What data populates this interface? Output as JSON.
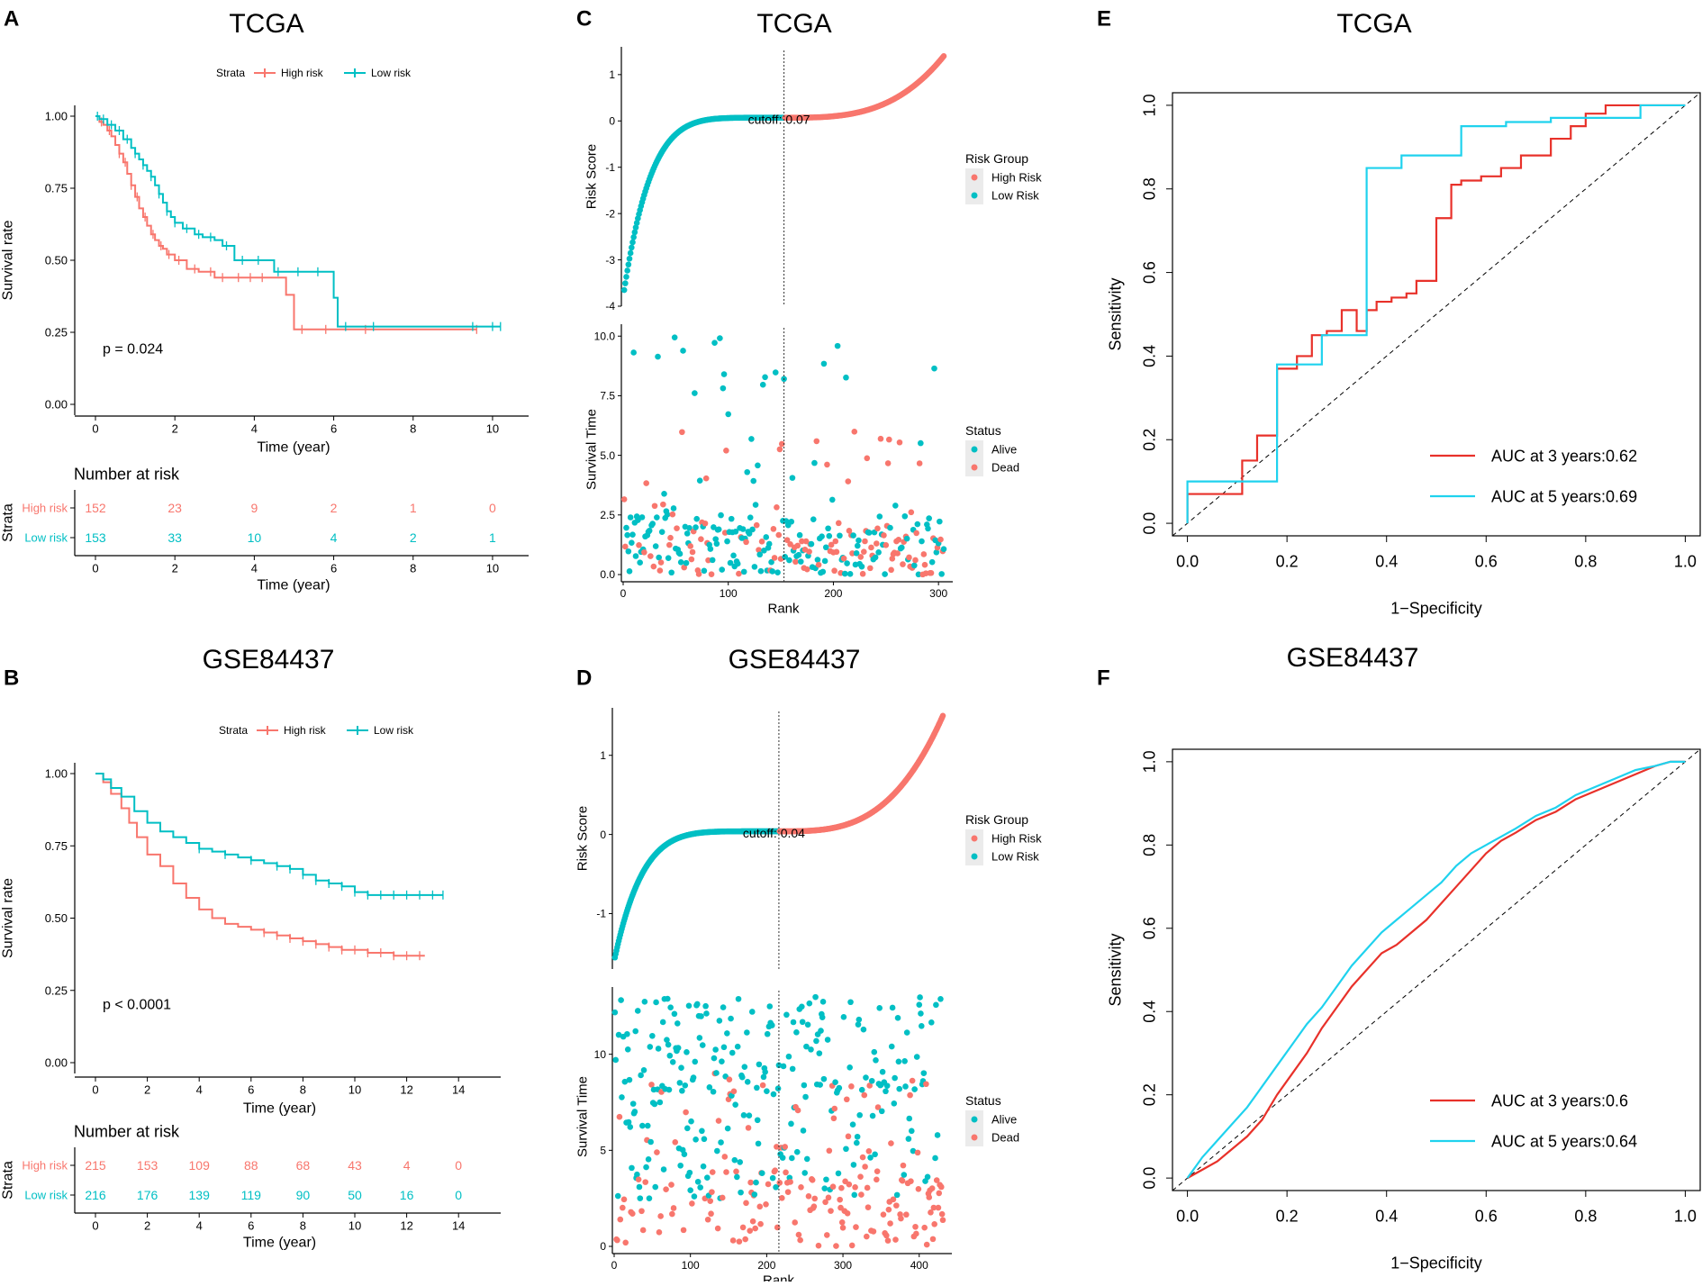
{
  "colors": {
    "high": "#F8766D",
    "low": "#00BFC4",
    "roc3": "#E8312A",
    "roc5": "#1FD2EE",
    "axis": "#333333",
    "tick": "#4d4d4d"
  },
  "chart_data": [
    {
      "panel": "A",
      "type": "line",
      "title": "TCGA",
      "legend": {
        "title": "Strata",
        "items": [
          "High risk",
          "Low risk"
        ]
      },
      "pvalue": "p = 0.024",
      "xlabel": "Time (year)",
      "ylabel": "Survival rate",
      "xlim": [
        0,
        10.5
      ],
      "ylim": [
        0,
        1
      ],
      "xticks": [
        0,
        2,
        4,
        6,
        8,
        10
      ],
      "yticks": [
        0,
        0.25,
        0.5,
        0.75,
        1
      ],
      "ytick_labels": [
        "0.00",
        "0.25",
        "0.50",
        "0.75",
        "1.00"
      ],
      "series": [
        {
          "name": "High risk",
          "x": [
            0,
            0.1,
            0.2,
            0.3,
            0.4,
            0.5,
            0.6,
            0.7,
            0.8,
            0.9,
            1.0,
            1.1,
            1.2,
            1.3,
            1.4,
            1.5,
            1.6,
            1.7,
            1.8,
            2.0,
            2.3,
            2.6,
            2.8,
            3.0,
            3.5,
            4.0,
            4.6,
            4.8,
            5.0,
            5.8,
            6.5,
            8.0,
            9.6
          ],
          "y": [
            1.0,
            0.98,
            0.97,
            0.95,
            0.93,
            0.9,
            0.87,
            0.84,
            0.8,
            0.76,
            0.72,
            0.68,
            0.65,
            0.62,
            0.59,
            0.57,
            0.55,
            0.54,
            0.52,
            0.5,
            0.47,
            0.46,
            0.46,
            0.44,
            0.44,
            0.44,
            0.44,
            0.38,
            0.26,
            0.26,
            0.26,
            0.26,
            0.26
          ],
          "censor_x": [
            0.15,
            0.35,
            0.6,
            0.75,
            0.9,
            1.05,
            1.25,
            1.45,
            1.65,
            1.85,
            2.1,
            2.5,
            2.9,
            3.2,
            3.6,
            3.9,
            4.2,
            5.2,
            5.8,
            6.8,
            9.6
          ]
        },
        {
          "name": "Low risk",
          "x": [
            0,
            0.1,
            0.3,
            0.5,
            0.7,
            0.9,
            1.0,
            1.1,
            1.2,
            1.3,
            1.4,
            1.5,
            1.6,
            1.7,
            1.8,
            1.9,
            2.0,
            2.2,
            2.5,
            2.7,
            3.0,
            3.2,
            3.5,
            4.0,
            4.5,
            5.0,
            5.5,
            5.8,
            6.0,
            6.1,
            7.0,
            8.0,
            9.0,
            10.2
          ],
          "y": [
            1.0,
            0.99,
            0.97,
            0.95,
            0.92,
            0.89,
            0.87,
            0.85,
            0.83,
            0.81,
            0.79,
            0.76,
            0.73,
            0.7,
            0.67,
            0.65,
            0.63,
            0.61,
            0.59,
            0.58,
            0.57,
            0.55,
            0.5,
            0.5,
            0.46,
            0.46,
            0.46,
            0.46,
            0.37,
            0.27,
            0.27,
            0.27,
            0.27,
            0.27
          ],
          "censor_x": [
            0.05,
            0.2,
            0.4,
            0.6,
            0.8,
            1.0,
            1.2,
            1.4,
            1.6,
            1.8,
            2.0,
            2.3,
            2.6,
            2.9,
            3.3,
            3.7,
            4.1,
            4.6,
            5.1,
            5.6,
            6.3,
            7.0,
            9.5,
            10.0,
            10.2
          ]
        }
      ],
      "risk_table": {
        "title": "Number at risk",
        "ylabel": "Strata",
        "xlabel": "Time (year)",
        "times": [
          0,
          2,
          4,
          6,
          8,
          10
        ],
        "rows": [
          {
            "name": "High risk",
            "values": [
              "152",
              "23",
              "9",
              "2",
              "1",
              "0"
            ]
          },
          {
            "name": "Low risk",
            "values": [
              "153",
              "33",
              "10",
              "4",
              "2",
              "1"
            ]
          }
        ]
      }
    },
    {
      "panel": "B",
      "type": "line",
      "title": "GSE84437",
      "legend": {
        "title": "Strata",
        "items": [
          "High risk",
          "Low risk"
        ]
      },
      "pvalue": "p < 0.0001",
      "xlabel": "Time (year)",
      "ylabel": "Survival rate",
      "xlim": [
        0,
        15
      ],
      "ylim": [
        0,
        1
      ],
      "xticks": [
        0,
        2,
        4,
        6,
        8,
        10,
        12,
        14
      ],
      "yticks": [
        0,
        0.25,
        0.5,
        0.75,
        1
      ],
      "ytick_labels": [
        "0.00",
        "0.25",
        "0.50",
        "0.75",
        "1.00"
      ],
      "series": [
        {
          "name": "High risk",
          "x": [
            0,
            0.3,
            0.6,
            1.0,
            1.3,
            1.6,
            2.0,
            2.5,
            3.0,
            3.5,
            4.0,
            4.5,
            5.0,
            5.5,
            6.0,
            6.5,
            7.0,
            7.5,
            8.0,
            8.5,
            9.0,
            9.5,
            10.0,
            10.5,
            11.0,
            11.5,
            12.0,
            12.7
          ],
          "y": [
            1.0,
            0.97,
            0.93,
            0.88,
            0.83,
            0.78,
            0.72,
            0.68,
            0.62,
            0.57,
            0.53,
            0.5,
            0.48,
            0.47,
            0.46,
            0.45,
            0.44,
            0.43,
            0.42,
            0.41,
            0.4,
            0.39,
            0.39,
            0.38,
            0.38,
            0.37,
            0.37,
            0.37
          ],
          "censor_x": [
            6.5,
            7.0,
            7.5,
            8.0,
            8.5,
            9.0,
            9.5,
            10.0,
            10.5,
            11.0,
            11.5,
            12.0,
            12.5
          ]
        },
        {
          "name": "Low risk",
          "x": [
            0,
            0.3,
            0.6,
            1.0,
            1.5,
            2.0,
            2.5,
            3.0,
            3.5,
            4.0,
            4.5,
            5.0,
            5.5,
            6.0,
            6.5,
            7.0,
            7.5,
            8.0,
            8.5,
            9.0,
            9.5,
            10.0,
            10.5,
            11.0,
            11.5,
            12.0,
            12.5,
            13.4
          ],
          "y": [
            1.0,
            0.98,
            0.95,
            0.92,
            0.87,
            0.83,
            0.8,
            0.78,
            0.76,
            0.74,
            0.73,
            0.72,
            0.71,
            0.7,
            0.69,
            0.68,
            0.67,
            0.65,
            0.63,
            0.62,
            0.61,
            0.59,
            0.58,
            0.58,
            0.58,
            0.58,
            0.58,
            0.58
          ],
          "censor_x": [
            4.0,
            5.0,
            6.0,
            7.0,
            7.5,
            8.0,
            8.5,
            9.0,
            9.5,
            10.0,
            10.5,
            11.0,
            11.5,
            12.0,
            12.5,
            13.0,
            13.4
          ]
        }
      ],
      "risk_table": {
        "title": "Number at risk",
        "ylabel": "Strata",
        "xlabel": "Time (year)",
        "times": [
          0,
          2,
          4,
          6,
          8,
          10,
          12,
          14
        ],
        "rows": [
          {
            "name": "High risk",
            "values": [
              "215",
              "153",
              "109",
              "88",
              "68",
              "43",
              "4",
              "0"
            ]
          },
          {
            "name": "Low risk",
            "values": [
              "216",
              "176",
              "139",
              "119",
              "90",
              "50",
              "16",
              "0"
            ]
          }
        ]
      }
    },
    {
      "panel": "C",
      "type": "scatter",
      "title": "TCGA",
      "n": 305,
      "cutoff_rank": 153,
      "cutoff_label": "cutoff: 0.07",
      "xlabel": "Rank",
      "xticks": [
        0,
        100,
        200,
        300
      ],
      "risk": {
        "ylabel": "Risk Score",
        "ylim": [
          -4,
          1.6
        ],
        "yticks": [
          -4,
          -3,
          -2,
          -1,
          0,
          1
        ],
        "legend_title": "Risk Group",
        "legend_items": [
          "High Risk",
          "Low Risk"
        ],
        "low_min": -3.8,
        "low_max": 0.07,
        "high_max": 1.4
      },
      "status": {
        "ylabel": "Survival Time",
        "ylim": [
          0,
          10.5
        ],
        "yticks": [
          0.0,
          2.5,
          5.0,
          7.5,
          10.0
        ],
        "ytick_labels": [
          "0.0",
          "2.5",
          "5.0",
          "7.5",
          "10.0"
        ],
        "legend_title": "Status",
        "legend_items": [
          "Alive",
          "Dead"
        ]
      }
    },
    {
      "panel": "D",
      "type": "scatter",
      "title": "GSE84437",
      "n": 431,
      "cutoff_rank": 216,
      "cutoff_label": "cutoff: 0.04",
      "xlabel": "Rank",
      "xticks": [
        0,
        100,
        200,
        300,
        400
      ],
      "risk": {
        "ylabel": "Risk Score",
        "ylim": [
          -1.7,
          1.6
        ],
        "yticks": [
          -1,
          0,
          1
        ],
        "legend_title": "Risk Group",
        "legend_items": [
          "High Risk",
          "Low Risk"
        ],
        "low_min": -1.6,
        "low_max": 0.04,
        "high_max": 1.5
      },
      "status": {
        "ylabel": "Survival Time",
        "ylim": [
          0,
          13.5
        ],
        "yticks": [
          0,
          5,
          10
        ],
        "ytick_labels": [
          "0",
          "5",
          "10"
        ],
        "legend_title": "Status",
        "legend_items": [
          "Alive",
          "Dead"
        ]
      }
    },
    {
      "panel": "E",
      "type": "line",
      "title": "TCGA",
      "xlabel": "1−Specificity",
      "ylabel": "Sensitivity",
      "xlim": [
        -0.03,
        1.03
      ],
      "ylim": [
        -0.03,
        1.03
      ],
      "ticks": [
        0,
        0.2,
        0.4,
        0.6,
        0.8,
        1.0
      ],
      "tick_labels": [
        "0.0",
        "0.2",
        "0.4",
        "0.6",
        "0.8",
        "1.0"
      ],
      "series": [
        {
          "name": "AUC at 3 years:0.62",
          "x": [
            0,
            0,
            0.11,
            0.11,
            0.14,
            0.14,
            0.18,
            0.18,
            0.22,
            0.22,
            0.25,
            0.25,
            0.28,
            0.28,
            0.31,
            0.31,
            0.34,
            0.34,
            0.36,
            0.36,
            0.38,
            0.38,
            0.41,
            0.41,
            0.44,
            0.44,
            0.46,
            0.46,
            0.5,
            0.5,
            0.53,
            0.53,
            0.55,
            0.55,
            0.59,
            0.59,
            0.63,
            0.63,
            0.67,
            0.67,
            0.73,
            0.73,
            0.77,
            0.77,
            0.8,
            0.8,
            0.84,
            0.84,
            0.88,
            0.88,
            1.0
          ],
          "y": [
            0,
            0.07,
            0.07,
            0.15,
            0.15,
            0.21,
            0.21,
            0.37,
            0.37,
            0.4,
            0.4,
            0.45,
            0.45,
            0.46,
            0.46,
            0.51,
            0.51,
            0.46,
            0.46,
            0.51,
            0.51,
            0.53,
            0.53,
            0.54,
            0.54,
            0.55,
            0.55,
            0.58,
            0.58,
            0.73,
            0.73,
            0.81,
            0.81,
            0.82,
            0.82,
            0.83,
            0.83,
            0.85,
            0.85,
            0.88,
            0.88,
            0.92,
            0.92,
            0.95,
            0.95,
            0.98,
            0.98,
            1.0,
            1.0,
            1.0,
            1.0
          ]
        },
        {
          "name": "AUC at 5 years:0.69",
          "x": [
            0,
            0,
            0.18,
            0.18,
            0.27,
            0.27,
            0.36,
            0.36,
            0.43,
            0.43,
            0.55,
            0.55,
            0.64,
            0.64,
            0.73,
            0.73,
            0.91,
            0.91,
            1.0
          ],
          "y": [
            0,
            0.1,
            0.1,
            0.38,
            0.38,
            0.45,
            0.45,
            0.85,
            0.85,
            0.88,
            0.88,
            0.95,
            0.95,
            0.96,
            0.96,
            0.97,
            0.97,
            1.0,
            1.0
          ]
        }
      ]
    },
    {
      "panel": "F",
      "type": "line",
      "title": "GSE84437",
      "xlabel": "1−Specificity",
      "ylabel": "Sensitivity",
      "xlim": [
        -0.03,
        1.03
      ],
      "ylim": [
        -0.03,
        1.03
      ],
      "ticks": [
        0,
        0.2,
        0.4,
        0.6,
        0.8,
        1.0
      ],
      "tick_labels": [
        "0.0",
        "0.2",
        "0.4",
        "0.6",
        "0.8",
        "1.0"
      ],
      "series": [
        {
          "name": "AUC at 3 years:0.6",
          "x": [
            0,
            0.03,
            0.06,
            0.09,
            0.12,
            0.15,
            0.18,
            0.21,
            0.24,
            0.27,
            0.3,
            0.33,
            0.36,
            0.39,
            0.42,
            0.45,
            0.48,
            0.51,
            0.54,
            0.57,
            0.6,
            0.63,
            0.66,
            0.7,
            0.74,
            0.78,
            0.82,
            0.86,
            0.9,
            0.94,
            0.97,
            1.0
          ],
          "y": [
            0,
            0.02,
            0.04,
            0.07,
            0.1,
            0.14,
            0.2,
            0.25,
            0.3,
            0.36,
            0.41,
            0.46,
            0.5,
            0.54,
            0.56,
            0.59,
            0.62,
            0.66,
            0.7,
            0.74,
            0.78,
            0.81,
            0.83,
            0.86,
            0.88,
            0.91,
            0.93,
            0.95,
            0.97,
            0.99,
            1.0,
            1.0
          ]
        },
        {
          "name": "AUC at 5 years:0.64",
          "x": [
            0,
            0.03,
            0.06,
            0.09,
            0.12,
            0.15,
            0.18,
            0.21,
            0.24,
            0.27,
            0.3,
            0.33,
            0.36,
            0.39,
            0.42,
            0.45,
            0.48,
            0.51,
            0.54,
            0.57,
            0.6,
            0.63,
            0.66,
            0.7,
            0.74,
            0.78,
            0.82,
            0.86,
            0.9,
            0.94,
            0.97,
            1.0
          ],
          "y": [
            0,
            0.05,
            0.09,
            0.13,
            0.17,
            0.22,
            0.27,
            0.32,
            0.37,
            0.41,
            0.46,
            0.51,
            0.55,
            0.59,
            0.62,
            0.65,
            0.68,
            0.71,
            0.75,
            0.78,
            0.8,
            0.82,
            0.84,
            0.87,
            0.89,
            0.92,
            0.94,
            0.96,
            0.98,
            0.99,
            1.0,
            1.0
          ]
        }
      ]
    }
  ]
}
